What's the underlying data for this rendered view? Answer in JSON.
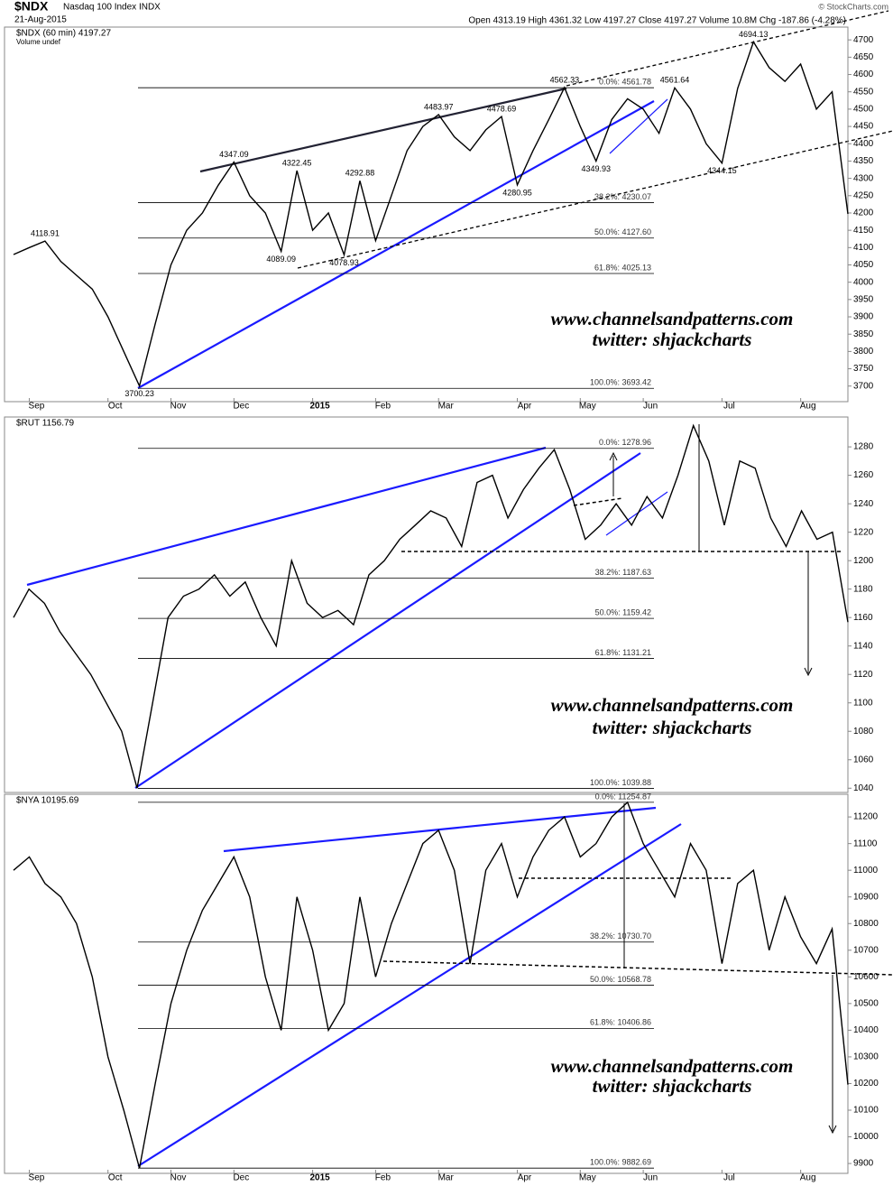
{
  "header": {
    "title": "$NDX",
    "subtitle": "Nasdaq 100 Index  INDX",
    "date": "21-Aug-2015",
    "quote": "Open 4313.19  High 4361.32  Low 4197.27  Close 4197.27  Volume 10.8M  Chg -187.86 (-4.28%)",
    "credit": "© StockCharts.com"
  },
  "chart_data": [
    {
      "type": "line",
      "label": "$NDX (60 min) 4197.27",
      "sublabel": "Volume undef",
      "color": "#000000",
      "categories": [
        null,
        "Sep",
        null,
        null,
        null,
        null,
        "Oct",
        null,
        null,
        null,
        "Nov",
        null,
        null,
        null,
        "Dec",
        null,
        null,
        null,
        null,
        "2015",
        null,
        null,
        null,
        "Feb",
        null,
        null,
        null,
        "Mar",
        null,
        null,
        null,
        null,
        "Apr",
        null,
        null,
        null,
        "May",
        null,
        null,
        null,
        "Jun",
        null,
        null,
        null,
        null,
        "Jul",
        null,
        null,
        null,
        null,
        "Aug",
        null,
        null,
        null
      ],
      "values": [
        4080,
        4100,
        4118.91,
        4060,
        4020,
        3980,
        3900,
        3800,
        3700.23,
        3880,
        4050,
        4150,
        4200,
        4280,
        4347.09,
        4250,
        4200,
        4089.09,
        4322.45,
        4150,
        4200,
        4078.93,
        4292.88,
        4120,
        4250,
        4380,
        4450,
        4483.97,
        4420,
        4380,
        4440,
        4478.69,
        4280.95,
        4380,
        4470,
        4562.33,
        4450,
        4349.93,
        4470,
        4530,
        4500,
        4430,
        4561.64,
        4500,
        4400,
        4344.15,
        4560,
        4694.13,
        4620,
        4580,
        4630,
        4500,
        4550,
        4197.27
      ],
      "value_labels": [
        null,
        null,
        "4118.91",
        null,
        null,
        null,
        null,
        null,
        "3700.23",
        null,
        null,
        null,
        null,
        null,
        "4347.09",
        null,
        null,
        "4089.09",
        "4322.45",
        null,
        null,
        "4078.93",
        "4292.88",
        null,
        null,
        null,
        null,
        "4483.97",
        null,
        null,
        null,
        "4478.69",
        "4280.95",
        null,
        null,
        "4562.33",
        null,
        "4349.93",
        null,
        null,
        null,
        null,
        "4561.64",
        null,
        null,
        "4344.15",
        null,
        "4694.13",
        null,
        null,
        null,
        null,
        null,
        null
      ],
      "ylim": [
        3655,
        4737
      ],
      "yticks": [
        3700,
        3750,
        3800,
        3850,
        3900,
        3950,
        4000,
        4050,
        4100,
        4150,
        4200,
        4250,
        4300,
        4350,
        4400,
        4450,
        4500,
        4550,
        4600,
        4650,
        4700
      ],
      "levels": [
        {
          "value": 4561.78,
          "label": "0.0%: 4561.78"
        },
        {
          "value": 4230.07,
          "label": "38.2%: 4230.07"
        },
        {
          "value": 4127.6,
          "label": "50.0%: 4127.60"
        },
        {
          "value": 4025.13,
          "label": "61.8%: 4025.13"
        },
        {
          "value": 3693.42,
          "label": "100.0%: 3693.42"
        }
      ],
      "watermark": [
        "www.channelsandpatterns.com",
        "twitter: shjackcharts"
      ]
    },
    {
      "type": "line",
      "label": "$RUT 1156.79",
      "color": "#000000",
      "values": [
        1160,
        1180,
        1170,
        1150,
        1135,
        1120,
        1100,
        1080,
        1040,
        1100,
        1160,
        1175,
        1180,
        1190,
        1175,
        1185,
        1160,
        1140,
        1200,
        1170,
        1160,
        1165,
        1155,
        1190,
        1200,
        1215,
        1225,
        1235,
        1230,
        1210,
        1255,
        1260,
        1230,
        1250,
        1265,
        1278,
        1250,
        1215,
        1225,
        1240,
        1225,
        1245,
        1230,
        1260,
        1295,
        1270,
        1225,
        1270,
        1265,
        1230,
        1210,
        1235,
        1215,
        1220,
        1156.79
      ],
      "ylim": [
        1037,
        1301
      ],
      "yticks": [
        1040,
        1060,
        1080,
        1100,
        1120,
        1140,
        1160,
        1180,
        1200,
        1220,
        1240,
        1260,
        1280
      ],
      "levels": [
        {
          "value": 1278.96,
          "label": "0.0%: 1278.96"
        },
        {
          "value": 1187.63,
          "label": "38.2%: 1187.63"
        },
        {
          "value": 1159.42,
          "label": "50.0%: 1159.42"
        },
        {
          "value": 1131.21,
          "label": "61.8%: 1131.21"
        },
        {
          "value": 1039.88,
          "label": "100.0%: 1039.88"
        }
      ],
      "watermark": [
        "www.channelsandpatterns.com",
        "twitter: shjackcharts"
      ]
    },
    {
      "type": "line",
      "label": "$NYA 10195.69",
      "color": "#000000",
      "categories": [
        null,
        "Sep",
        null,
        null,
        null,
        null,
        "Oct",
        null,
        null,
        null,
        "Nov",
        null,
        null,
        null,
        "Dec",
        null,
        null,
        null,
        null,
        "2015",
        null,
        null,
        null,
        "Feb",
        null,
        null,
        null,
        "Mar",
        null,
        null,
        null,
        null,
        "Apr",
        null,
        null,
        null,
        "May",
        null,
        null,
        null,
        "Jun",
        null,
        null,
        null,
        null,
        "Jul",
        null,
        null,
        null,
        null,
        "Aug",
        null,
        null,
        null
      ],
      "values": [
        11000,
        11050,
        10950,
        10900,
        10800,
        10600,
        10300,
        10100,
        9882.69,
        10200,
        10500,
        10700,
        10850,
        10950,
        11050,
        10900,
        10600,
        10400,
        10900,
        10700,
        10400,
        10500,
        10900,
        10600,
        10800,
        10950,
        11100,
        11150,
        11000,
        10650,
        11000,
        11100,
        10900,
        11050,
        11150,
        11200,
        11050,
        11100,
        11200,
        11254.87,
        11100,
        11000,
        10900,
        11100,
        11000,
        10650,
        10950,
        11000,
        10700,
        10900,
        10750,
        10650,
        10780,
        10195.69
      ],
      "ylim": [
        9863,
        11285
      ],
      "yticks": [
        9900,
        10000,
        10100,
        10200,
        10300,
        10400,
        10500,
        10600,
        10700,
        10800,
        10900,
        11000,
        11100,
        11200
      ],
      "levels": [
        {
          "value": 11254.87,
          "label": "0.0%: 11254.87"
        },
        {
          "value": 10730.7,
          "label": "38.2%: 10730.70"
        },
        {
          "value": 10568.78,
          "label": "50.0%: 10568.78"
        },
        {
          "value": 10406.86,
          "label": "61.8%: 10406.86"
        },
        {
          "value": 9882.69,
          "label": "100.0%: 9882.69"
        }
      ],
      "watermark": [
        "www.channelsandpatterns.com",
        "twitter: shjackcharts"
      ]
    }
  ]
}
